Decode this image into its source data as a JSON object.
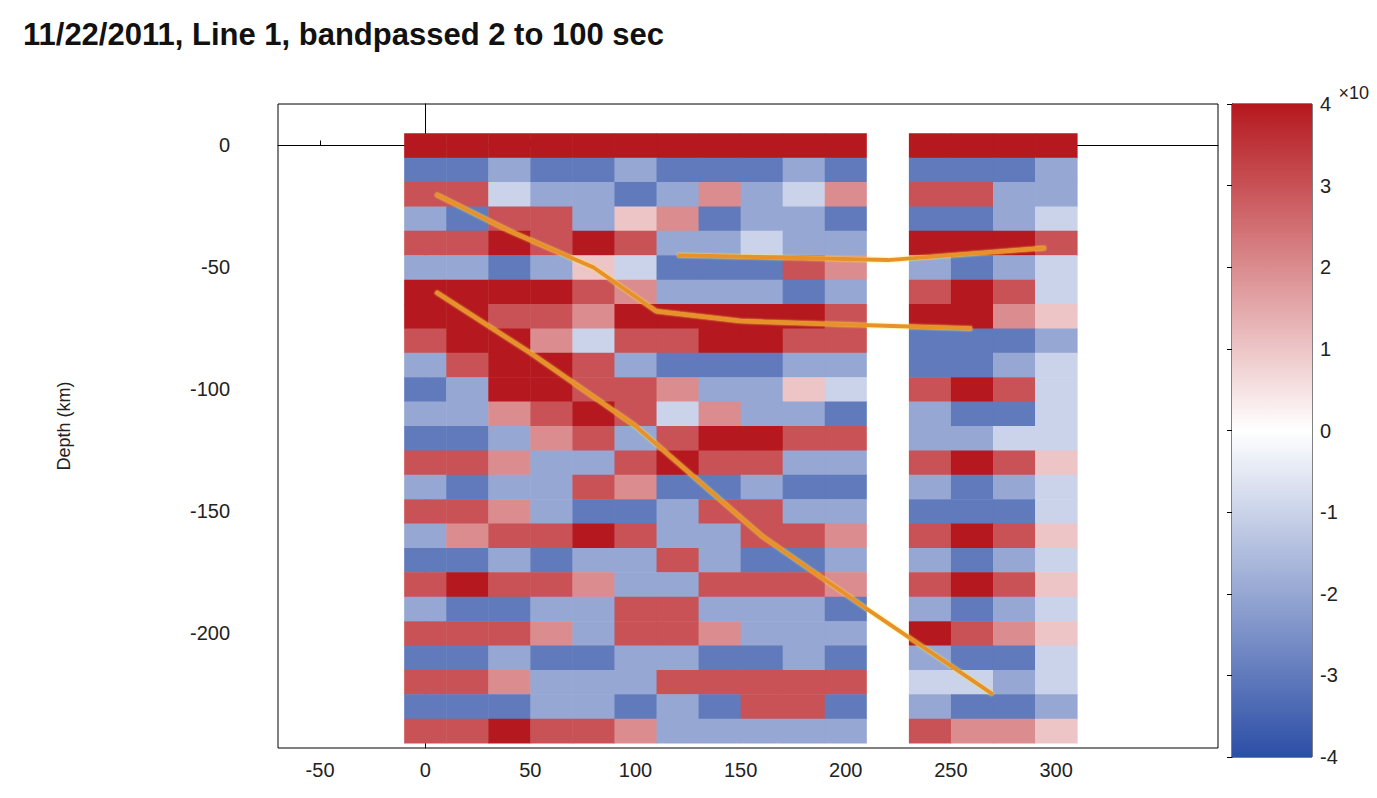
{
  "chart_data": {
    "type": "heatmap",
    "title": "11/22/2011, Line 1, bandpassed 2 to 100 sec",
    "ylabel": "Depth (km)",
    "xlim": [
      -70,
      377
    ],
    "xticks": [
      -50,
      0,
      50,
      100,
      150,
      200,
      250,
      300
    ],
    "ylim": [
      -247,
      17
    ],
    "yticks": [
      -200,
      -150,
      -100,
      -50,
      0
    ],
    "heatmap": {
      "x": [
        0,
        20,
        40,
        60,
        80,
        100,
        120,
        140,
        160,
        180,
        200,
        220,
        240,
        260,
        280,
        300
      ],
      "y": [
        0,
        -10,
        -20,
        -30,
        -40,
        -50,
        -60,
        -70,
        -80,
        -90,
        -100,
        -110,
        -120,
        -130,
        -140,
        -150,
        -160,
        -170,
        -180,
        -190,
        -200,
        -210,
        -220,
        -230,
        -240
      ],
      "values": [
        [
          4,
          4,
          4,
          4,
          4,
          4,
          4,
          4,
          4,
          4,
          4,
          0,
          4,
          4,
          4,
          4
        ],
        [
          -3,
          -3,
          -2,
          -3,
          -3,
          -2,
          -3,
          -3,
          -3,
          -2,
          -3,
          0,
          -3,
          -3,
          -3,
          -2
        ],
        [
          3,
          3,
          -1,
          -2,
          -2,
          -3,
          -2,
          2,
          -2,
          -1,
          2,
          0,
          3,
          3,
          -2,
          -2
        ],
        [
          -2,
          -3,
          3,
          3,
          -2,
          1,
          2,
          -3,
          -2,
          -2,
          -3,
          0,
          -3,
          -3,
          -2,
          -1
        ],
        [
          3,
          3,
          4,
          3,
          4,
          3,
          -2,
          -2,
          -1,
          -2,
          -2,
          0,
          4,
          4,
          4,
          3
        ],
        [
          -2,
          -2,
          -3,
          -2,
          1,
          -1,
          -3,
          -3,
          -3,
          3,
          2,
          0,
          -2,
          -3,
          -2,
          -1
        ],
        [
          4,
          4,
          4,
          4,
          3,
          2,
          -2,
          -2,
          -2,
          -3,
          -2,
          0,
          3,
          4,
          3,
          -1
        ],
        [
          4,
          4,
          3,
          3,
          2,
          4,
          4,
          4,
          4,
          4,
          3,
          0,
          4,
          4,
          2,
          1
        ],
        [
          3,
          4,
          4,
          2,
          -1,
          3,
          3,
          4,
          4,
          3,
          3,
          0,
          -3,
          -3,
          -3,
          -2
        ],
        [
          -2,
          3,
          4,
          4,
          3,
          -2,
          -3,
          -3,
          -3,
          -2,
          -2,
          0,
          -3,
          -3,
          -2,
          -1
        ],
        [
          -3,
          -2,
          4,
          4,
          3,
          3,
          2,
          -2,
          -2,
          1,
          -1,
          0,
          3,
          4,
          3,
          -1
        ],
        [
          -2,
          -2,
          2,
          3,
          4,
          3,
          -1,
          2,
          -2,
          -2,
          -3,
          0,
          -2,
          -3,
          -3,
          -1
        ],
        [
          -3,
          -3,
          -2,
          2,
          3,
          -2,
          3,
          4,
          4,
          3,
          3,
          0,
          -2,
          -2,
          -1,
          -1
        ],
        [
          3,
          3,
          2,
          -2,
          -2,
          3,
          4,
          3,
          3,
          -2,
          -2,
          0,
          3,
          4,
          3,
          1
        ],
        [
          -2,
          -3,
          -2,
          -2,
          3,
          2,
          -3,
          -3,
          -2,
          -3,
          -3,
          0,
          -2,
          -3,
          -2,
          -1
        ],
        [
          3,
          3,
          2,
          -2,
          -3,
          -3,
          -2,
          3,
          3,
          -2,
          -2,
          0,
          -3,
          -3,
          -3,
          -1
        ],
        [
          -2,
          2,
          3,
          3,
          4,
          3,
          -2,
          -2,
          3,
          3,
          2,
          0,
          3,
          4,
          3,
          1
        ],
        [
          -3,
          -3,
          -2,
          -3,
          -2,
          -2,
          3,
          -2,
          -3,
          -3,
          -2,
          0,
          -2,
          -3,
          -2,
          -1
        ],
        [
          3,
          4,
          3,
          3,
          2,
          -2,
          -2,
          3,
          3,
          3,
          2,
          0,
          3,
          4,
          3,
          1
        ],
        [
          -2,
          -3,
          -3,
          -2,
          -2,
          3,
          3,
          -2,
          -2,
          -2,
          -3,
          0,
          -2,
          -3,
          -2,
          -1
        ],
        [
          3,
          3,
          3,
          2,
          -2,
          3,
          3,
          2,
          -2,
          -2,
          -2,
          0,
          4,
          3,
          2,
          1
        ],
        [
          -3,
          -3,
          -2,
          -3,
          -3,
          -2,
          -2,
          -3,
          -3,
          -2,
          -3,
          0,
          -2,
          -3,
          -3,
          -1
        ],
        [
          3,
          3,
          2,
          -2,
          -2,
          -2,
          3,
          3,
          3,
          3,
          3,
          0,
          -1,
          -1,
          -2,
          -1
        ],
        [
          -3,
          -3,
          -3,
          -2,
          -2,
          -3,
          -2,
          -3,
          3,
          3,
          -3,
          0,
          -2,
          -3,
          -3,
          -2
        ],
        [
          3,
          3,
          4,
          3,
          3,
          2,
          -2,
          -2,
          -2,
          -2,
          -2,
          0,
          3,
          2,
          2,
          1
        ]
      ]
    },
    "colorbar": {
      "label": "×10",
      "range": [
        -4,
        4
      ],
      "ticks": [
        -4,
        -3,
        -2,
        -1,
        0,
        1,
        2,
        3,
        4
      ],
      "colors": [
        "#2c4ea6",
        "#ffffff",
        "#b5181e"
      ]
    },
    "lines": [
      {
        "x": [
          5,
          40,
          80,
          110,
          150,
          260
        ],
        "y": [
          -20,
          -35,
          -50,
          -68,
          -72,
          -75
        ],
        "color": "#e8902a"
      },
      {
        "x": [
          120,
          220,
          295
        ],
        "y": [
          -45,
          -47,
          -42
        ],
        "color": "#e8902a"
      },
      {
        "x": [
          5,
          50,
          100,
          160,
          210,
          270
        ],
        "y": [
          -60,
          -85,
          -115,
          -160,
          -190,
          -225
        ],
        "color": "#e8902a"
      }
    ]
  }
}
